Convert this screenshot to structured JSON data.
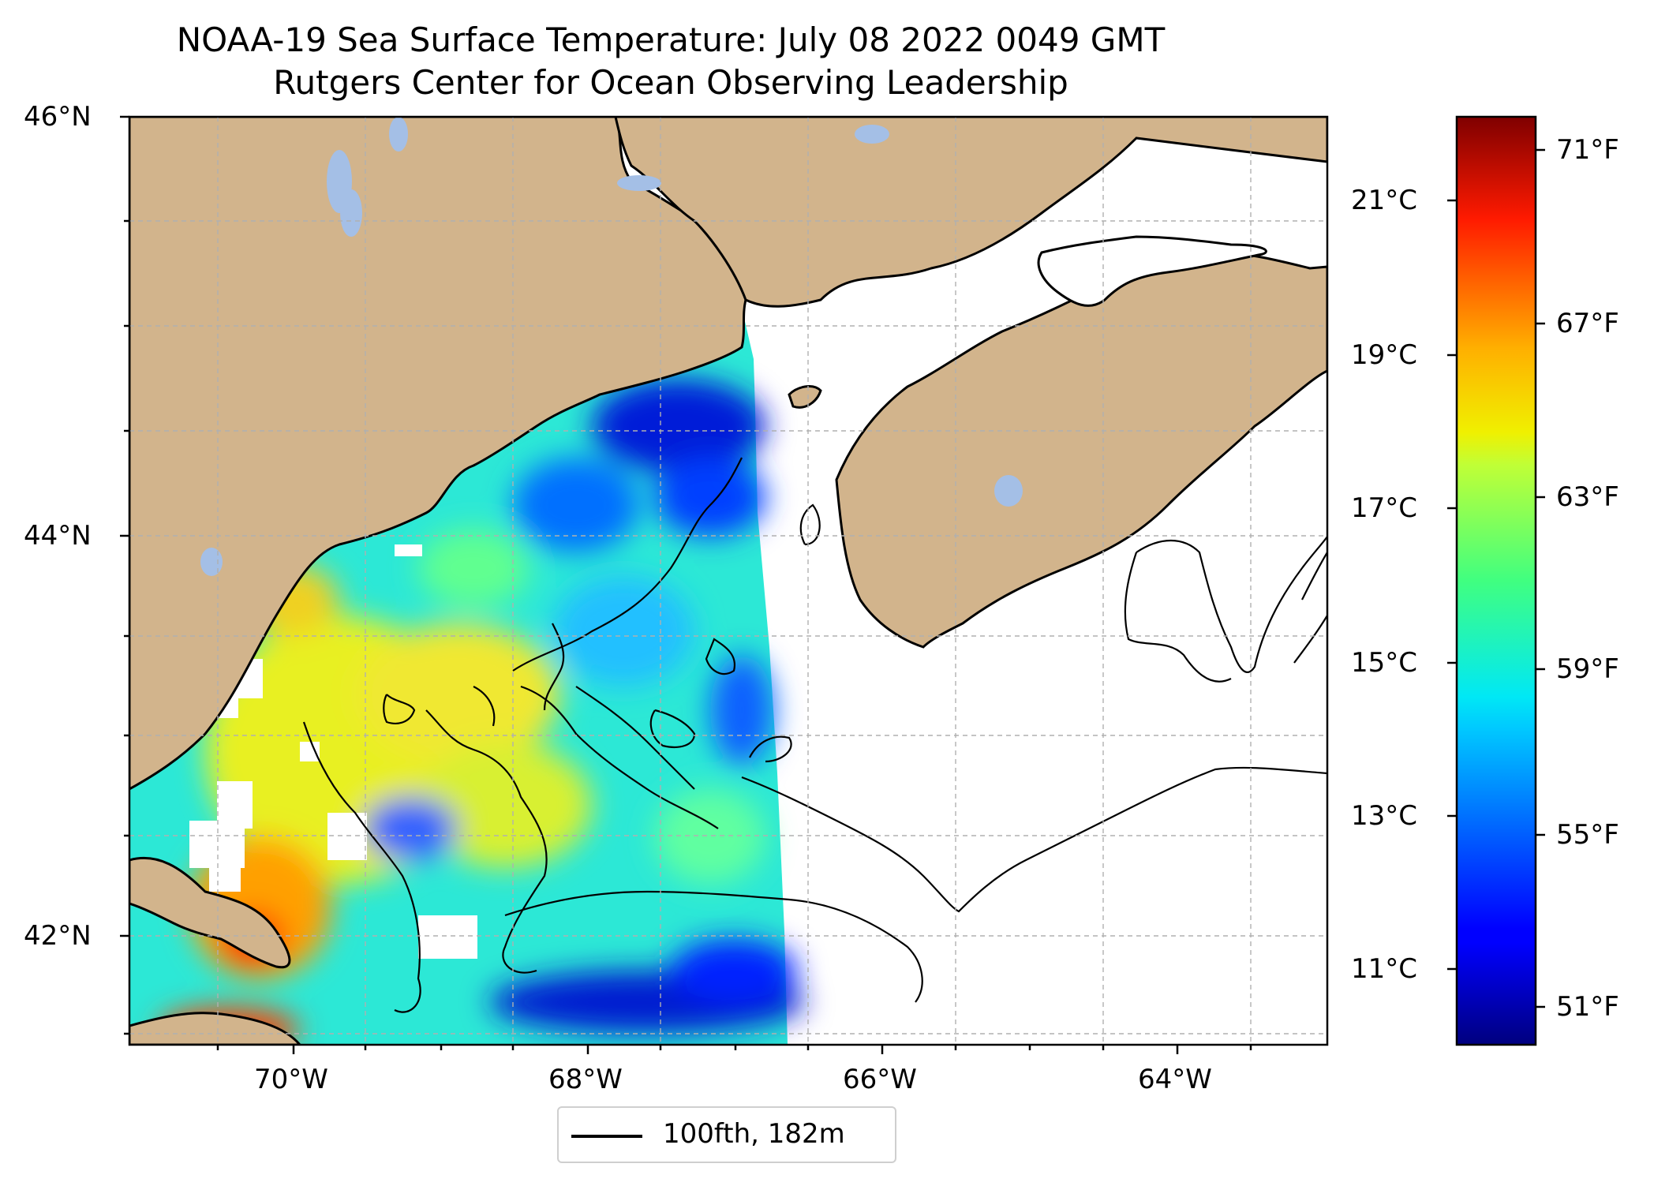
{
  "title": {
    "line1": "NOAA-19 Sea Surface Temperature: July 08 2022 0049 GMT",
    "line2": "Rutgers Center for Ocean Observing Leadership"
  },
  "map": {
    "lon_range": [
      -71.1,
      -63.0
    ],
    "lat_range": [
      41.55,
      46.0
    ],
    "lon_ticks": [
      "70°W",
      "68°W",
      "66°W",
      "64°W"
    ],
    "lat_ticks": [
      "46°N",
      "44°N",
      "42°N"
    ],
    "land_color": "#d2b48c",
    "lake_color": "#a4bfe6",
    "no_data_color": "#ffffff",
    "gridlines": true,
    "contour_label": "100fth, 182m"
  },
  "colorbar": {
    "colormap": "jet",
    "celsius_ticks": [
      "21°C",
      "19°C",
      "17°C",
      "15°C",
      "13°C",
      "11°C"
    ],
    "fahrenheit_ticks": [
      "71°F",
      "67°F",
      "63°F",
      "59°F",
      "55°F",
      "51°F"
    ],
    "range_f": [
      50.0,
      72.0
    ]
  }
}
